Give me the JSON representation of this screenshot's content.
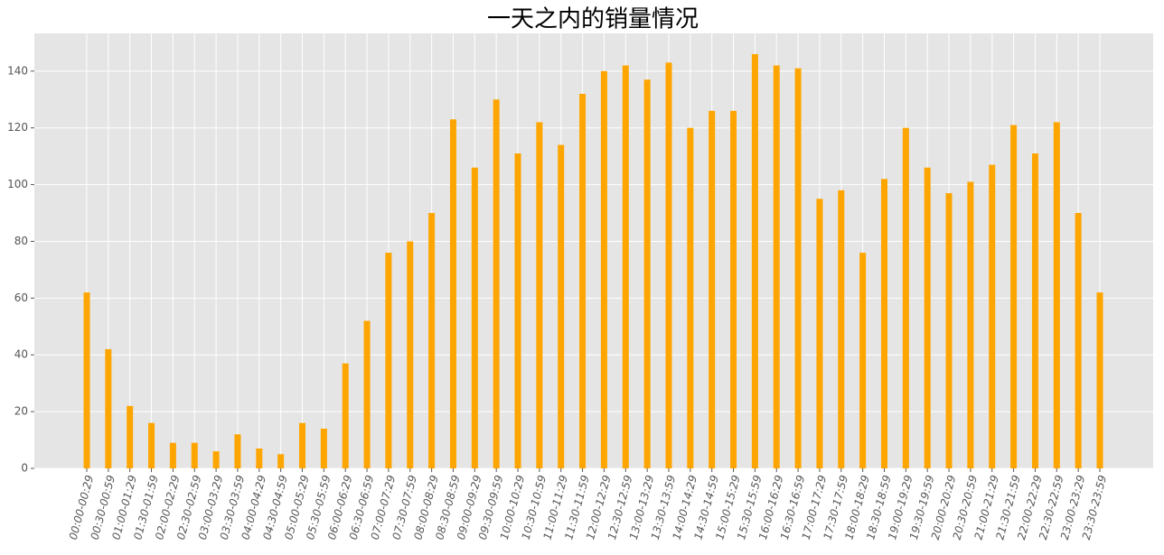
{
  "chart_data": {
    "type": "bar",
    "title": "一天之内的销量情况",
    "categories": [
      "00:00-00:29",
      "00:30-00:59",
      "01:00-01:29",
      "01:30-01:59",
      "02:00-02:29",
      "02:30-02:59",
      "03:00-03:29",
      "03:30-03:59",
      "04:00-04:29",
      "04:30-04:59",
      "05:00-05:29",
      "05:30-05:59",
      "06:00-06:29",
      "06:30-06:59",
      "07:00-07:29",
      "07:30-07:59",
      "08:00-08:29",
      "08:30-08:59",
      "09:00-09:29",
      "09:30-09:59",
      "10:00-10:29",
      "10:30-10:59",
      "11:00-11:29",
      "11:30-11:59",
      "12:00-12:29",
      "12:30-12:59",
      "13:00-13:29",
      "13:30-13:59",
      "14:00-14:29",
      "14:30-14:59",
      "15:00-15:29",
      "15:30-15:59",
      "16:00-16:29",
      "16:30-16:59",
      "17:00-17:29",
      "17:30-17:59",
      "18:00-18:29",
      "18:30-18:59",
      "19:00-19:29",
      "19:30-19:59",
      "20:00-20:29",
      "20:30-20:59",
      "21:00-21:29",
      "21:30-21:59",
      "22:00-22:29",
      "22:30-22:59",
      "23:00-23:29",
      "23:30-23:59"
    ],
    "values": [
      62,
      42,
      22,
      16,
      9,
      9,
      6,
      12,
      7,
      5,
      16,
      14,
      37,
      52,
      76,
      80,
      90,
      123,
      106,
      130,
      111,
      122,
      114,
      132,
      140,
      142,
      137,
      143,
      120,
      126,
      126,
      146,
      142,
      141,
      95,
      98,
      76,
      102,
      120,
      106,
      97,
      101,
      107,
      121,
      111,
      122,
      90,
      62
    ],
    "color": "#ffa500",
    "ylim": [
      0,
      153.3
    ],
    "yticks": [
      0,
      20,
      40,
      60,
      80,
      100,
      120,
      140
    ],
    "grid": true
  }
}
